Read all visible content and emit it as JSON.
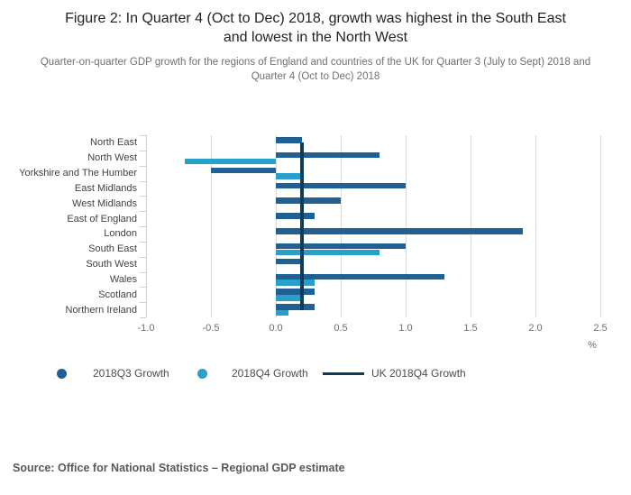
{
  "chart_data": {
    "type": "bar",
    "orientation": "horizontal",
    "title": "Figure 2: In Quarter 4 (Oct to Dec) 2018, growth was highest in the South East and lowest in the North West",
    "subtitle": "Quarter-on-quarter GDP growth for the regions of England and countries of the UK for Quarter 3 (July to Sept) 2018 and Quarter 4 (Oct to Dec) 2018",
    "categories": [
      "North East",
      "North West",
      "Yorkshire and The Humber",
      "East Midlands",
      "West Midlands",
      "East of England",
      "London",
      "South East",
      "South West",
      "Wales",
      "Scotland",
      "Northern Ireland"
    ],
    "series": [
      {
        "name": "2018Q3 Growth",
        "marker": "circle",
        "color": "#206095",
        "values": [
          0.2,
          0.8,
          -0.5,
          1.0,
          0.5,
          0.3,
          1.9,
          1.0,
          0.2,
          1.3,
          0.3,
          0.3
        ]
      },
      {
        "name": "2018Q4 Growth",
        "marker": "circle",
        "color": "#27a0cc",
        "values": [
          0.0,
          -0.7,
          0.2,
          0.0,
          0.0,
          0.0,
          0.0,
          0.8,
          0.0,
          0.3,
          0.2,
          0.1
        ]
      }
    ],
    "reference_line": {
      "name": "UK 2018Q4 Growth",
      "value": 0.2,
      "color": "#0e3c57",
      "marker": "line"
    },
    "xlim": [
      -1.0,
      2.5
    ],
    "xticks": [
      -1.0,
      -0.5,
      0.0,
      0.5,
      1.0,
      1.5,
      2.0,
      2.5
    ],
    "xtick_labels": [
      "-1.0",
      "-0.5",
      "0.0",
      "0.5",
      "1.0",
      "1.5",
      "2.0",
      "2.5"
    ],
    "xlabel": "%",
    "ylabel": "",
    "grid": true,
    "legend_position": "bottom"
  },
  "legend": {
    "items": [
      {
        "label": "2018Q3 Growth",
        "marker": "circle",
        "color": "#206095"
      },
      {
        "label": "2018Q4 Growth",
        "marker": "circle",
        "color": "#27a0cc"
      },
      {
        "label": "UK 2018Q4 Growth",
        "marker": "line",
        "color": "#0e3c57"
      }
    ]
  },
  "footer": {
    "source": "Source: Office for National Statistics – Regional GDP estimate"
  }
}
